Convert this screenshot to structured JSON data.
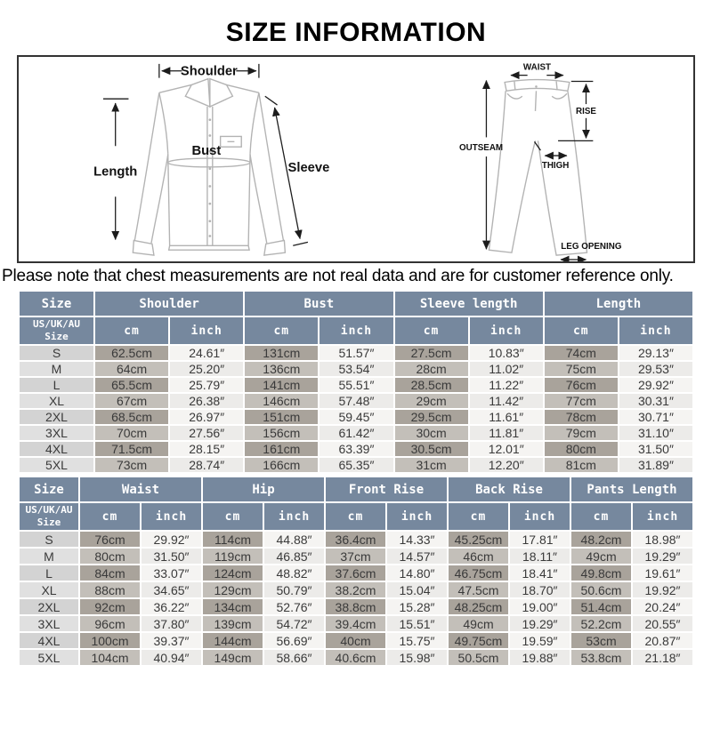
{
  "title": "SIZE INFORMATION",
  "note": "Please note that chest measurements are not real data and are for customer reference only.",
  "colors": {
    "header_bg": "#76889e",
    "cm_cell_bg": "#a9a39b",
    "inch_cell_bg": "#f5f4f2",
    "size_cell_bg": "#d3d3d3",
    "cell_text": "#3a3a3a",
    "line_gray": "#b3b3b3"
  },
  "diagram": {
    "shirt": {
      "shoulder": "Shoulder",
      "length": "Length",
      "bust": "Bust",
      "sleeve": "Sleeve"
    },
    "pants": {
      "waist": "WAIST",
      "rise": "RISE",
      "outseam": "OUTSEAM",
      "thigh": "THIGH",
      "leg_opening": "LEG OPENING"
    }
  },
  "tables": [
    {
      "size_header": "Size",
      "size_subheader": "US/UK/AU\nSize",
      "unit_cm": "cm",
      "unit_inch": "inch",
      "groups": [
        "Shoulder",
        "Bust",
        "Sleeve length",
        "Length"
      ],
      "rows": [
        {
          "size": "S",
          "cells": [
            "62.5cm",
            "24.61″",
            "131cm",
            "51.57″",
            "27.5cm",
            "10.83″",
            "74cm",
            "29.13″"
          ]
        },
        {
          "size": "M",
          "cells": [
            "64cm",
            "25.20″",
            "136cm",
            "53.54″",
            "28cm",
            "11.02″",
            "75cm",
            "29.53″"
          ]
        },
        {
          "size": "L",
          "cells": [
            "65.5cm",
            "25.79″",
            "141cm",
            "55.51″",
            "28.5cm",
            "11.22″",
            "76cm",
            "29.92″"
          ]
        },
        {
          "size": "XL",
          "cells": [
            "67cm",
            "26.38″",
            "146cm",
            "57.48″",
            "29cm",
            "11.42″",
            "77cm",
            "30.31″"
          ]
        },
        {
          "size": "2XL",
          "cells": [
            "68.5cm",
            "26.97″",
            "151cm",
            "59.45″",
            "29.5cm",
            "11.61″",
            "78cm",
            "30.71″"
          ]
        },
        {
          "size": "3XL",
          "cells": [
            "70cm",
            "27.56″",
            "156cm",
            "61.42″",
            "30cm",
            "11.81″",
            "79cm",
            "31.10″"
          ]
        },
        {
          "size": "4XL",
          "cells": [
            "71.5cm",
            "28.15″",
            "161cm",
            "63.39″",
            "30.5cm",
            "12.01″",
            "80cm",
            "31.50″"
          ]
        },
        {
          "size": "5XL",
          "cells": [
            "73cm",
            "28.74″",
            "166cm",
            "65.35″",
            "31cm",
            "12.20″",
            "81cm",
            "31.89″"
          ]
        }
      ]
    },
    {
      "size_header": "Size",
      "size_subheader": "US/UK/AU\nSize",
      "unit_cm": "cm",
      "unit_inch": "inch",
      "groups": [
        "Waist",
        "Hip",
        "Front Rise",
        "Back Rise",
        "Pants Length"
      ],
      "rows": [
        {
          "size": "S",
          "cells": [
            "76cm",
            "29.92″",
            "114cm",
            "44.88″",
            "36.4cm",
            "14.33″",
            "45.25cm",
            "17.81″",
            "48.2cm",
            "18.98″"
          ]
        },
        {
          "size": "M",
          "cells": [
            "80cm",
            "31.50″",
            "119cm",
            "46.85″",
            "37cm",
            "14.57″",
            "46cm",
            "18.11″",
            "49cm",
            "19.29″"
          ]
        },
        {
          "size": "L",
          "cells": [
            "84cm",
            "33.07″",
            "124cm",
            "48.82″",
            "37.6cm",
            "14.80″",
            "46.75cm",
            "18.41″",
            "49.8cm",
            "19.61″"
          ]
        },
        {
          "size": "XL",
          "cells": [
            "88cm",
            "34.65″",
            "129cm",
            "50.79″",
            "38.2cm",
            "15.04″",
            "47.5cm",
            "18.70″",
            "50.6cm",
            "19.92″"
          ]
        },
        {
          "size": "2XL",
          "cells": [
            "92cm",
            "36.22″",
            "134cm",
            "52.76″",
            "38.8cm",
            "15.28″",
            "48.25cm",
            "19.00″",
            "51.4cm",
            "20.24″"
          ]
        },
        {
          "size": "3XL",
          "cells": [
            "96cm",
            "37.80″",
            "139cm",
            "54.72″",
            "39.4cm",
            "15.51″",
            "49cm",
            "19.29″",
            "52.2cm",
            "20.55″"
          ]
        },
        {
          "size": "4XL",
          "cells": [
            "100cm",
            "39.37″",
            "144cm",
            "56.69″",
            "40cm",
            "15.75″",
            "49.75cm",
            "19.59″",
            "53cm",
            "20.87″"
          ]
        },
        {
          "size": "5XL",
          "cells": [
            "104cm",
            "40.94″",
            "149cm",
            "58.66″",
            "40.6cm",
            "15.98″",
            "50.5cm",
            "19.88″",
            "53.8cm",
            "21.18″"
          ]
        }
      ]
    }
  ]
}
